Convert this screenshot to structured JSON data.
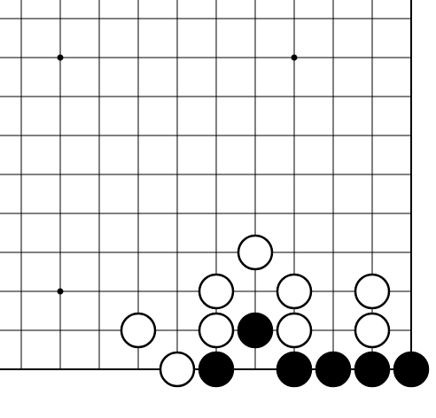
{
  "board": {
    "visible_columns": 11,
    "visible_rows": 10,
    "edges": [
      "right",
      "bottom"
    ],
    "line_color": "#000000",
    "background_color": "#ffffff",
    "black_stone_color": "#000000",
    "white_stone_color": "#ffffff",
    "star_points": [
      {
        "col": 1,
        "row": 1
      },
      {
        "col": 7,
        "row": 1
      },
      {
        "col": 1,
        "row": 7
      }
    ],
    "stones": [
      {
        "color": "white",
        "col": 6,
        "row": 6
      },
      {
        "color": "white",
        "col": 5,
        "row": 7
      },
      {
        "color": "white",
        "col": 7,
        "row": 7
      },
      {
        "color": "white",
        "col": 9,
        "row": 7
      },
      {
        "color": "white",
        "col": 3,
        "row": 8
      },
      {
        "color": "white",
        "col": 5,
        "row": 8
      },
      {
        "color": "black",
        "col": 6,
        "row": 8
      },
      {
        "color": "white",
        "col": 7,
        "row": 8
      },
      {
        "color": "white",
        "col": 9,
        "row": 8
      },
      {
        "color": "white",
        "col": 4,
        "row": 9
      },
      {
        "color": "black",
        "col": 5,
        "row": 9
      },
      {
        "color": "black",
        "col": 7,
        "row": 9
      },
      {
        "color": "black",
        "col": 8,
        "row": 9
      },
      {
        "color": "black",
        "col": 9,
        "row": 9
      },
      {
        "color": "black",
        "col": 10,
        "row": 9
      }
    ]
  }
}
